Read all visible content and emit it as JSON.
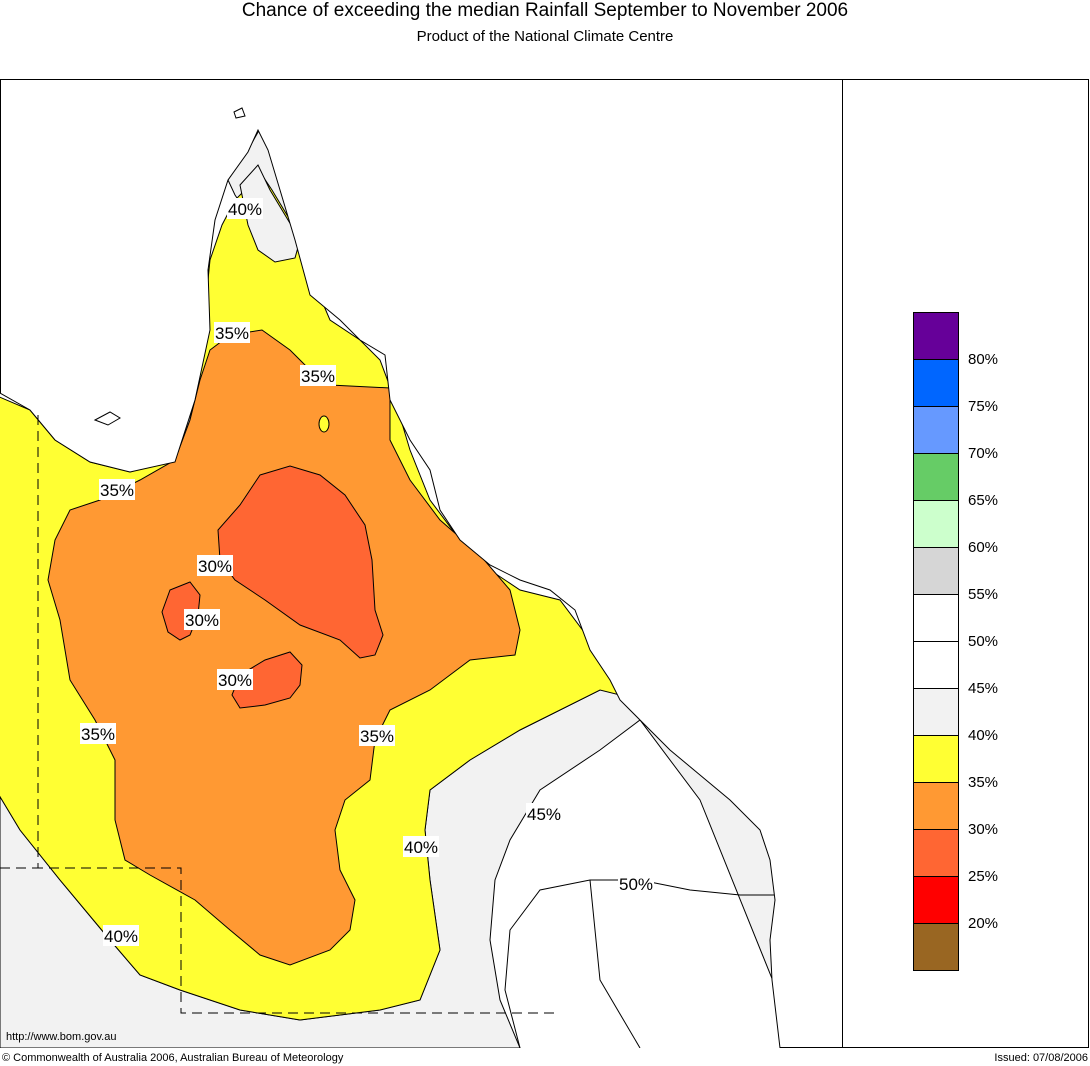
{
  "header": {
    "title": "Chance of exceeding the median Rainfall September to November 2006",
    "subtitle": "Product of the National Climate Centre"
  },
  "footer": {
    "url": "http://www.bom.gov.au",
    "copyright": "© Commonwealth of Australia 2006, Australian Bureau of Meteorology",
    "issued": "Issued: 07/08/2006"
  },
  "map": {
    "region": "Queensland",
    "contour_labels": [
      "40%",
      "35%",
      "35%",
      "35%",
      "30%",
      "30%",
      "30%",
      "35%",
      "35%",
      "45%",
      "40%",
      "50%",
      "40%"
    ]
  },
  "legend": {
    "colors": [
      "#660099",
      "#0066ff",
      "#6699ff",
      "#66cc66",
      "#ccffcc",
      "#d6d6d6",
      "#ffffff",
      "#ffffff",
      "#f2f2f2",
      "#ffff33",
      "#ff9933",
      "#ff6633",
      "#ff0000",
      "#996622"
    ],
    "labels": [
      "80%",
      "75%",
      "70%",
      "65%",
      "60%",
      "55%",
      "50%",
      "45%",
      "40%",
      "35%",
      "30%",
      "25%",
      "20%"
    ]
  }
}
